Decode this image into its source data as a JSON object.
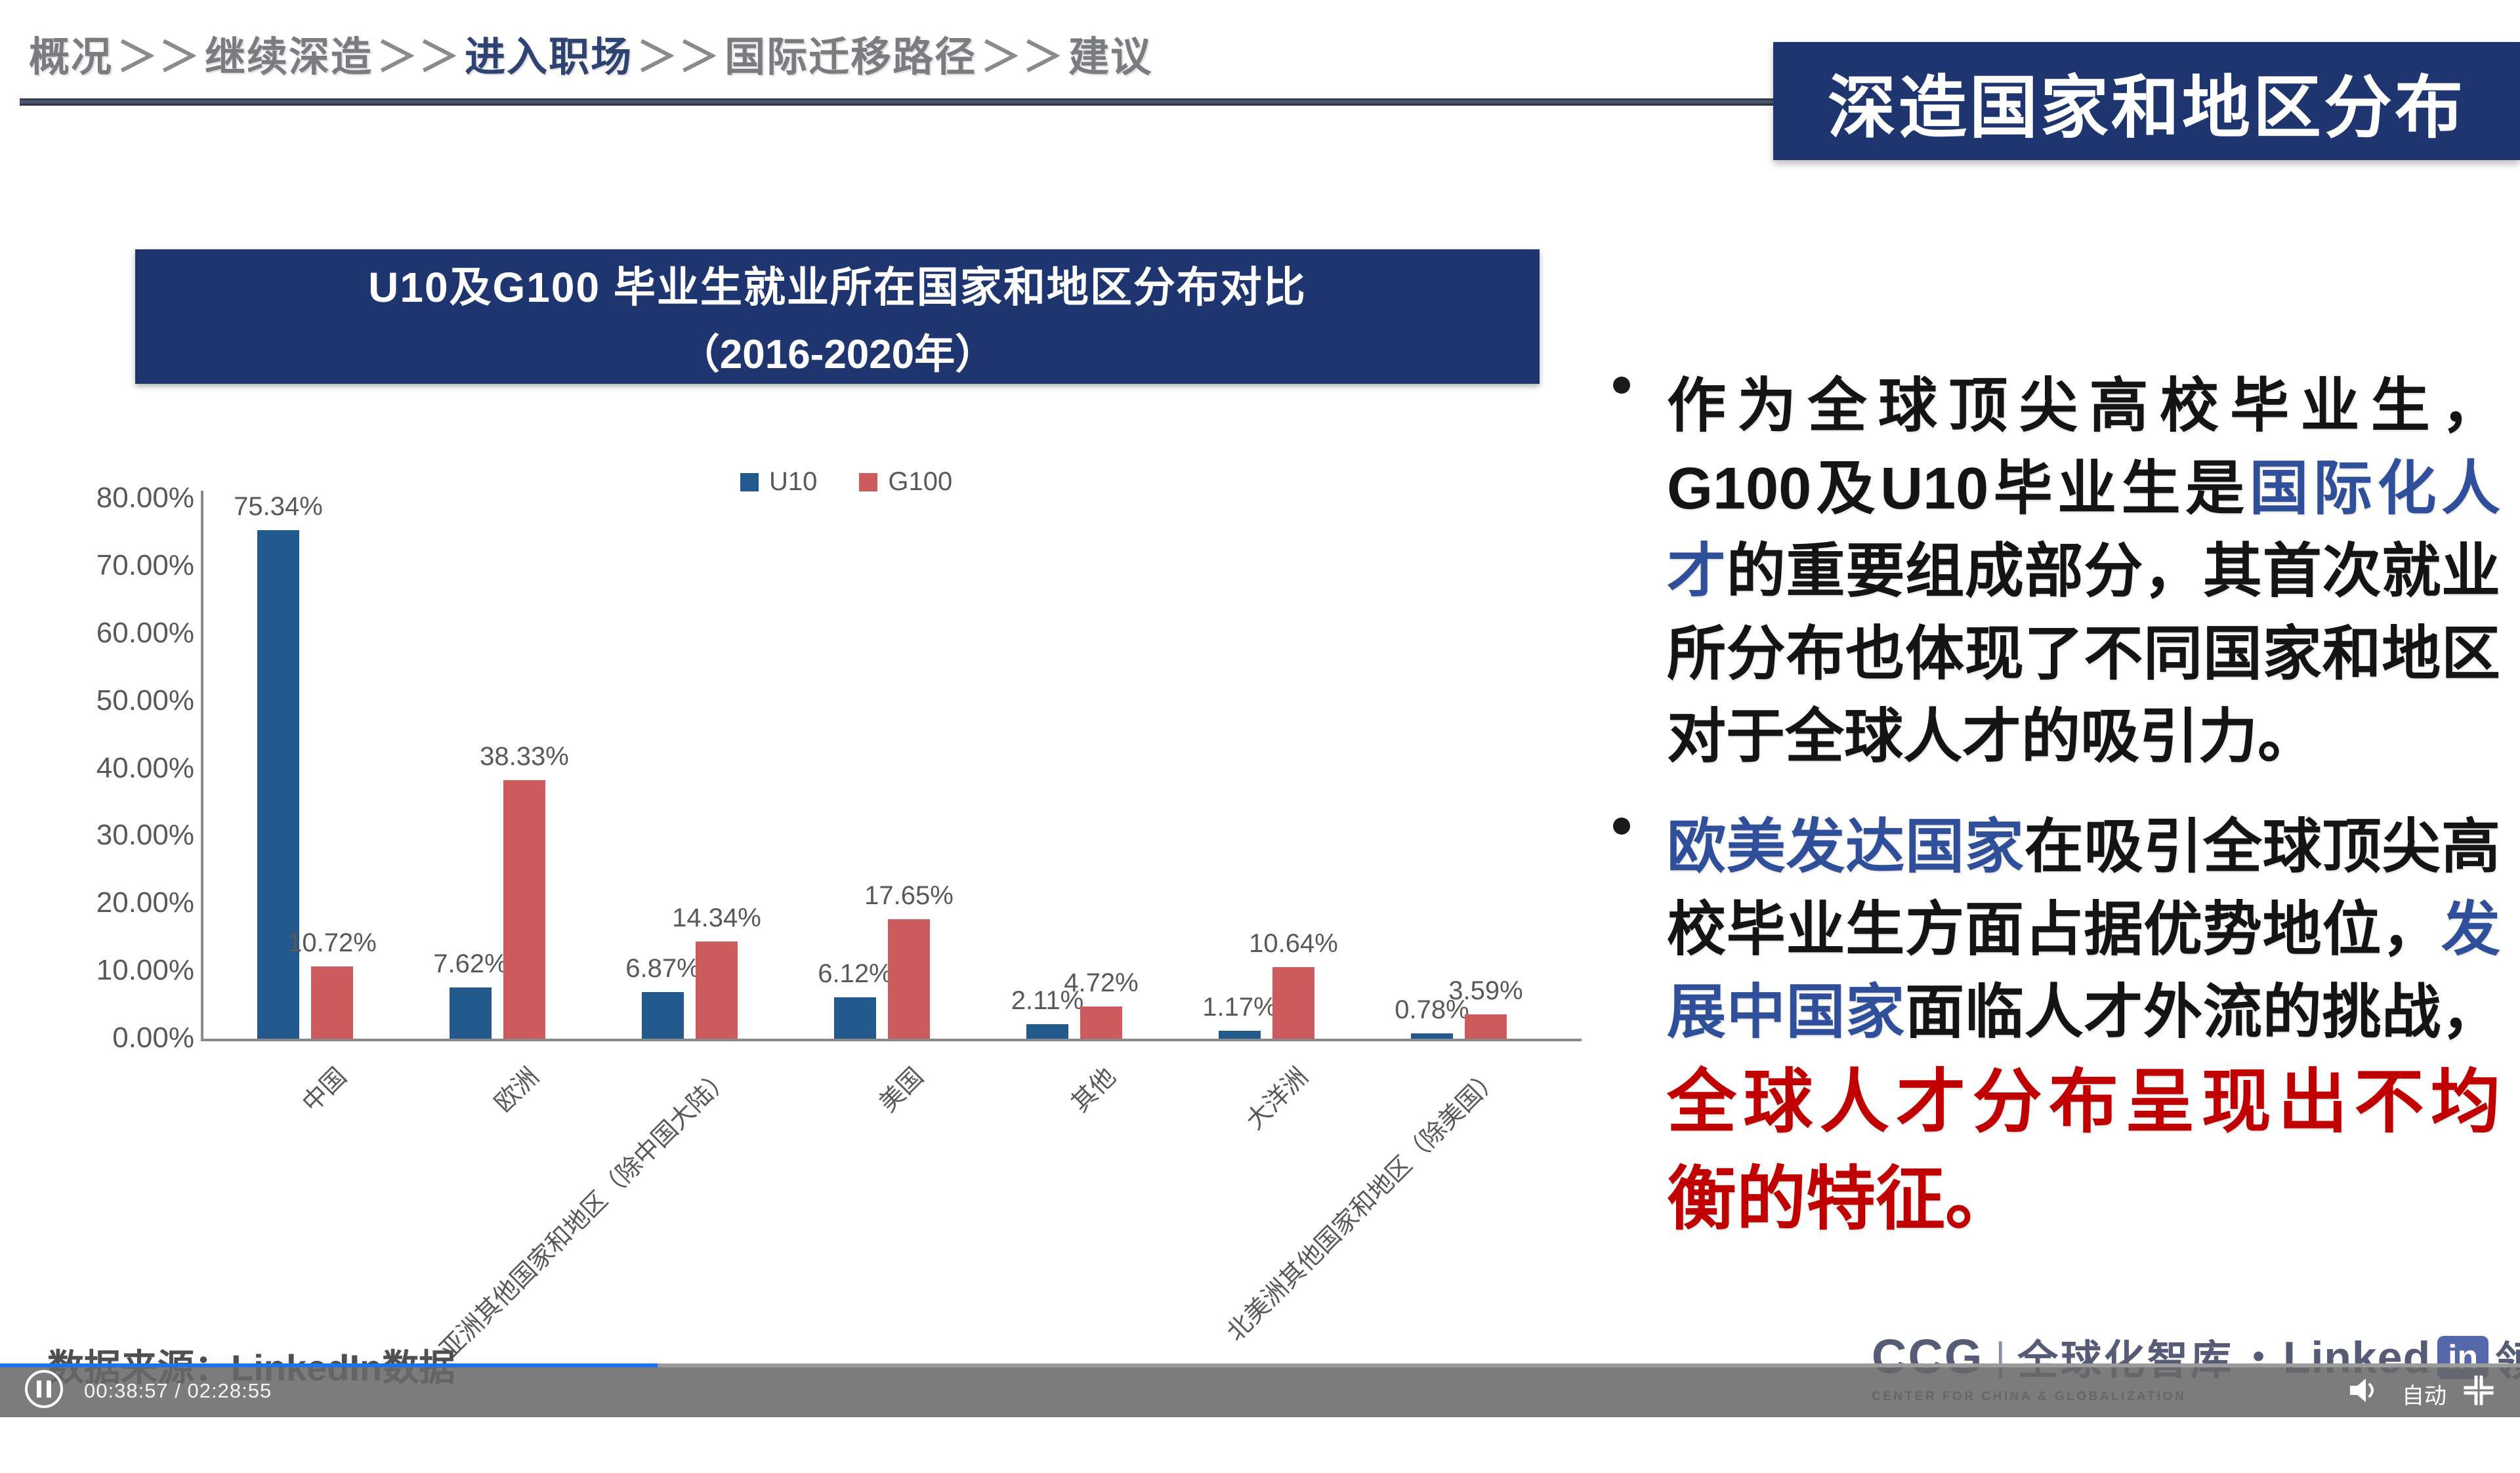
{
  "breadcrumb": {
    "separator": "＞＞",
    "items": [
      {
        "label": "概况",
        "active": false
      },
      {
        "label": "继续深造",
        "active": false
      },
      {
        "label": "进入职场",
        "active": true
      },
      {
        "label": "国际迁移路径",
        "active": false
      },
      {
        "label": "建议",
        "active": false
      }
    ]
  },
  "page_title": "深造国家和地区分布",
  "chart": {
    "banner_line1": "U10及G100 毕业生就业所在国家和地区分布对比",
    "banner_line2": "（2016-2020年）"
  },
  "chart_data": {
    "type": "bar",
    "title": "U10及G100 毕业生就业所在国家和地区分布对比（2016-2020年）",
    "categories": [
      "中国",
      "欧洲",
      "亚洲其他国家和地区（除中国大陆）",
      "美国",
      "其他",
      "大洋洲",
      "北美洲其他国家和地区（除美国）"
    ],
    "series": [
      {
        "name": "U10",
        "color": "#235a8e",
        "values": [
          75.34,
          7.62,
          6.87,
          6.12,
          2.11,
          1.17,
          0.78
        ]
      },
      {
        "name": "G100",
        "color": "#cd5a5c",
        "values": [
          10.72,
          38.33,
          14.34,
          17.65,
          4.72,
          10.64,
          3.59
        ]
      }
    ],
    "value_suffix": "%",
    "data_labels": true,
    "y_ticks": [
      "80.00%",
      "70.00%",
      "60.00%",
      "50.00%",
      "40.00%",
      "30.00%",
      "20.00%",
      "10.00%",
      "0.00%"
    ],
    "ylim": [
      0,
      80
    ],
    "grid": false,
    "legend_position": "top-center"
  },
  "bullets": [
    {
      "segments": [
        {
          "text": "作为全球顶尖高校毕业生，G100及U10毕业生是",
          "style": "normal"
        },
        {
          "text": "国际化人才",
          "style": "blue"
        },
        {
          "text": "的重要组成部分，其首次就业所分布也体现了不同国家和地区对于全球人才的吸引力。",
          "style": "normal"
        }
      ]
    },
    {
      "segments": [
        {
          "text": "欧美发达国家",
          "style": "blue"
        },
        {
          "text": "在吸引全球顶尖高校毕业生方面占据优势地位，",
          "style": "normal"
        },
        {
          "text": "发展中国家",
          "style": "blue"
        },
        {
          "text": "面临人才外流的挑战，",
          "style": "normal"
        },
        {
          "text": "全球人才分布呈现出不均衡的特征。",
          "style": "red"
        }
      ]
    }
  ],
  "source_note": "数据来源：LinkedIn数据",
  "footer_logos": {
    "ccg_acronym": "CCG",
    "ccg_pipe": "|",
    "ccg_name": "全球化智库",
    "ccg_tagline": "CENTER FOR CHINA & GLOBALIZATION",
    "separator": "•",
    "linkedin_word": "Linked",
    "linkedin_badge": "in",
    "linkedin_cn": "领英"
  },
  "player": {
    "time": "00:38:57 / 02:28:55",
    "quality_label": "自动",
    "progress_percent": 26.1
  },
  "colors": {
    "navy": "#1e356f",
    "bar_blue": "#235a8e",
    "bar_red": "#cd5a5c",
    "text_blue": "#2f4f9b",
    "text_red": "#c00000",
    "progress_blue": "#1c74e8"
  }
}
